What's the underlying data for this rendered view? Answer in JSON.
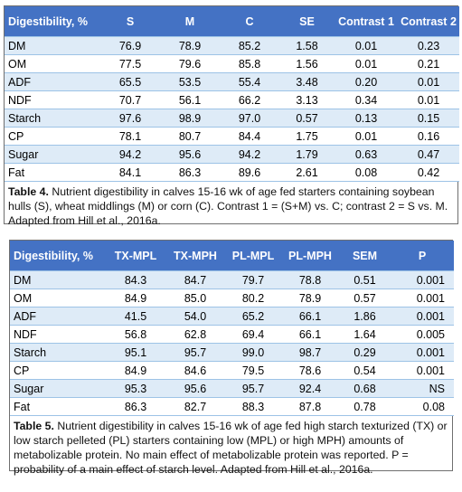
{
  "table4": {
    "headers": [
      "Digestibility, %",
      "S",
      "M",
      "C",
      "SE",
      "Contrast 1",
      "Contrast 2"
    ],
    "rows": [
      [
        "DM",
        "76.9",
        "78.9",
        "85.2",
        "1.58",
        "0.01",
        "0.23"
      ],
      [
        "OM",
        "77.5",
        "79.6",
        "85.8",
        "1.56",
        "0.01",
        "0.21"
      ],
      [
        "ADF",
        "65.5",
        "53.5",
        "55.4",
        "3.48",
        "0.20",
        "0.01"
      ],
      [
        "NDF",
        "70.7",
        "56.1",
        "66.2",
        "3.13",
        "0.34",
        "0.01"
      ],
      [
        "Starch",
        "97.6",
        "98.9",
        "97.0",
        "0.57",
        "0.13",
        "0.15"
      ],
      [
        "CP",
        "78.1",
        "80.7",
        "84.4",
        "1.75",
        "0.01",
        "0.16"
      ],
      [
        "Sugar",
        "94.2",
        "95.6",
        "94.2",
        "1.79",
        "0.63",
        "0.47"
      ],
      [
        "Fat",
        "84.1",
        "86.3",
        "89.6",
        "2.61",
        "0.08",
        "0.42"
      ]
    ],
    "caption_label": "Table 4.",
    "caption_text": "Nutrient digestibility in calves 15-16 wk of age fed starters containing soybean hulls (S), wheat middlings (M) or corn (C).  Contrast 1 = (S+M) vs. C; contrast 2 = S vs. M.  Adapted from Hill et al., 2016a."
  },
  "table5": {
    "headers": [
      "Digestibility, %",
      "TX-MPL",
      "TX-MPH",
      "PL-MPL",
      "PL-MPH",
      "SEM",
      "P"
    ],
    "rows": [
      [
        "DM",
        "84.3",
        "84.7",
        "79.7",
        "78.8",
        "0.51",
        "0.001"
      ],
      [
        "OM",
        "84.9",
        "85.0",
        "80.2",
        "78.9",
        "0.57",
        "0.001"
      ],
      [
        "ADF",
        "41.5",
        "54.0",
        "65.2",
        "66.1",
        "1.86",
        "0.001"
      ],
      [
        "NDF",
        "56.8",
        "62.8",
        "69.4",
        "66.1",
        "1.64",
        "0.005"
      ],
      [
        "Starch",
        "95.1",
        "95.7",
        "99.0",
        "98.7",
        "0.29",
        "0.001"
      ],
      [
        "CP",
        "84.9",
        "84.6",
        "79.5",
        "78.6",
        "0.54",
        "0.001"
      ],
      [
        "Sugar",
        "95.3",
        "95.6",
        "95.7",
        "92.4",
        "0.68",
        "NS"
      ],
      [
        "Fat",
        "86.3",
        "82.7",
        "88.3",
        "87.8",
        "0.78",
        "0.08"
      ]
    ],
    "caption_label": "Table 5.",
    "caption_text": "Nutrient digestibility in calves 15-16 wk of age fed high starch texturized (TX) or low starch pelleted (PL) starters containing low (MPL) or high MPH) amounts of metabolizable protein.  No main effect of metabolizable protein was reported.  P = probability of a main effect of starch level.  Adapted from Hill et al., 2016a."
  }
}
